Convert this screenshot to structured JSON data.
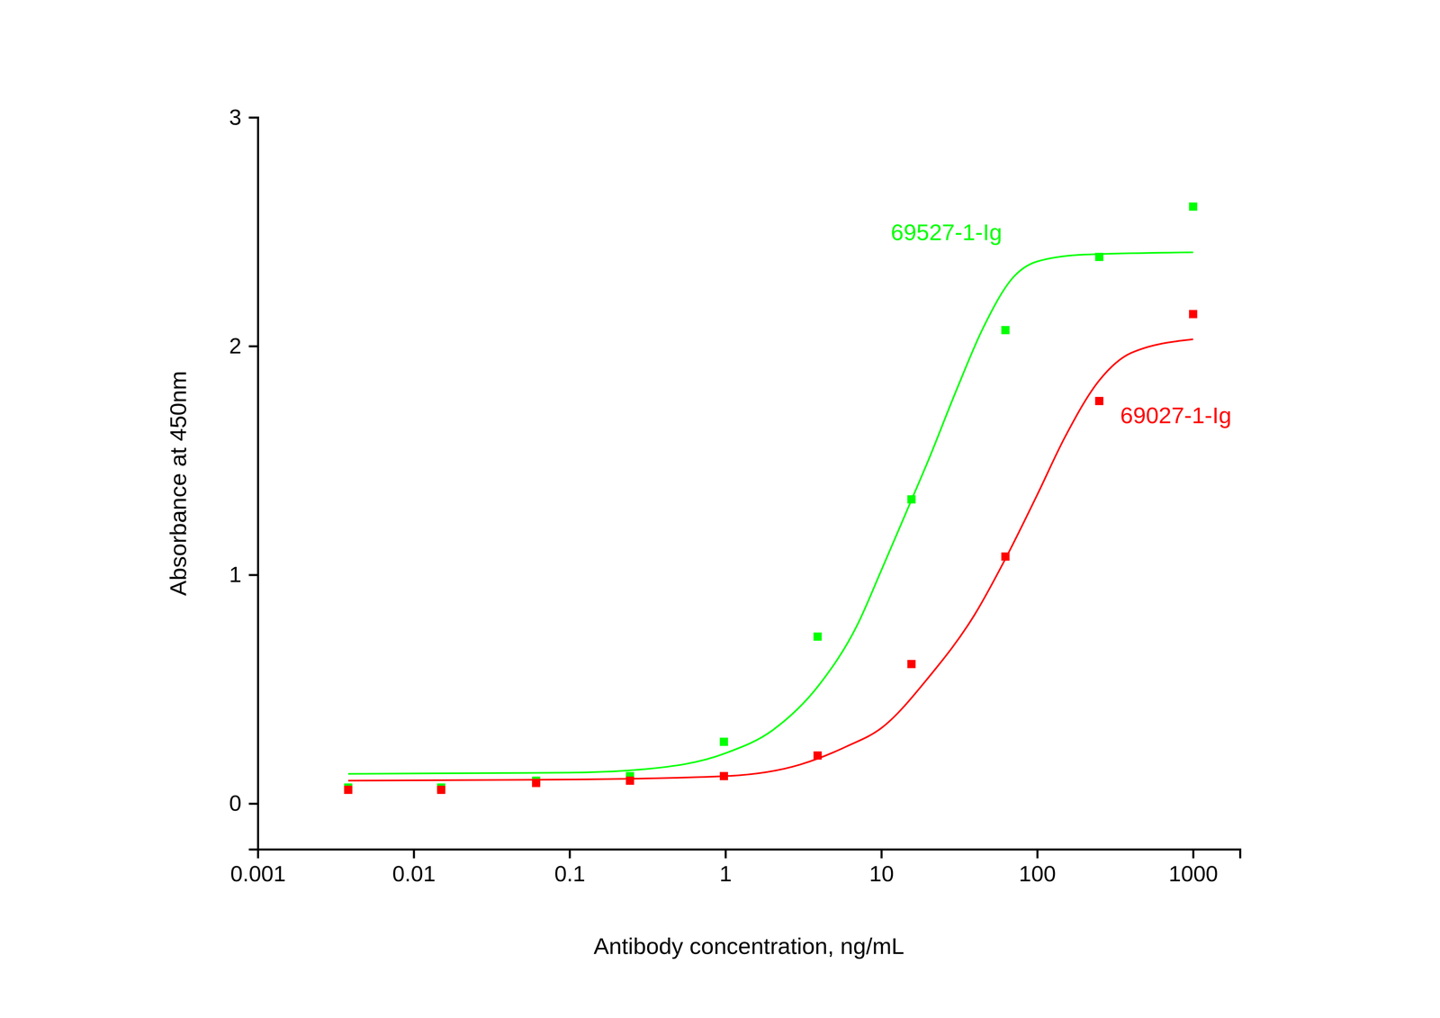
{
  "chart_data": {
    "type": "scatter",
    "x_label": "Antibody concentration, ng/mL",
    "y_label": "Absorbance at 450nm",
    "log": "x",
    "xlim": [
      0.001,
      2000
    ],
    "xticks": [
      0.001,
      0.01,
      0.1,
      1,
      10,
      100,
      1000
    ],
    "ylim": [
      -0.2,
      3
    ],
    "yticks": [
      0,
      1,
      2,
      3
    ],
    "x": [
      0.0038,
      0.015,
      0.061,
      0.244,
      0.977,
      3.9,
      15.6,
      62.5,
      250,
      1000
    ],
    "series": [
      {
        "type": "scatter",
        "marker": "square",
        "color": "#00ff00",
        "values": [
          0.07,
          0.07,
          0.1,
          0.12,
          0.27,
          0.73,
          1.33,
          2.07,
          2.39,
          2.61
        ]
      },
      {
        "type": "scatter",
        "marker": "square",
        "color": "#ff0000",
        "values": [
          0.06,
          0.06,
          0.09,
          0.1,
          0.12,
          0.21,
          0.61,
          1.08,
          1.76,
          2.14
        ]
      },
      {
        "type": "line",
        "line_style": "solid",
        "color": "#00ff00",
        "x": [
          0.0038,
          0.1,
          0.3,
          1,
          2,
          4,
          7,
          10,
          15,
          20,
          30,
          45,
          70,
          100,
          200,
          1000
        ],
        "values": [
          0.13,
          0.135,
          0.15,
          0.22,
          0.32,
          0.52,
          0.78,
          1.02,
          1.3,
          1.5,
          1.8,
          2.08,
          2.3,
          2.37,
          2.4,
          2.41
        ]
      },
      {
        "type": "line",
        "line_style": "solid",
        "color": "#ff0000",
        "x": [
          0.0038,
          0.1,
          1,
          3,
          6,
          10,
          20,
          40,
          62.5,
          100,
          150,
          250,
          400,
          1000
        ],
        "values": [
          0.1,
          0.105,
          0.12,
          0.17,
          0.25,
          0.33,
          0.55,
          0.83,
          1.07,
          1.35,
          1.6,
          1.85,
          1.97,
          2.03
        ]
      }
    ],
    "annotations": [
      {
        "text": "69527-1-Ig",
        "x": 11.5,
        "y": 2.49,
        "color": "#00ff00"
      },
      {
        "text": "69027-1-Ig",
        "x": 341,
        "y": 1.69,
        "color": "#ff0000"
      }
    ]
  }
}
